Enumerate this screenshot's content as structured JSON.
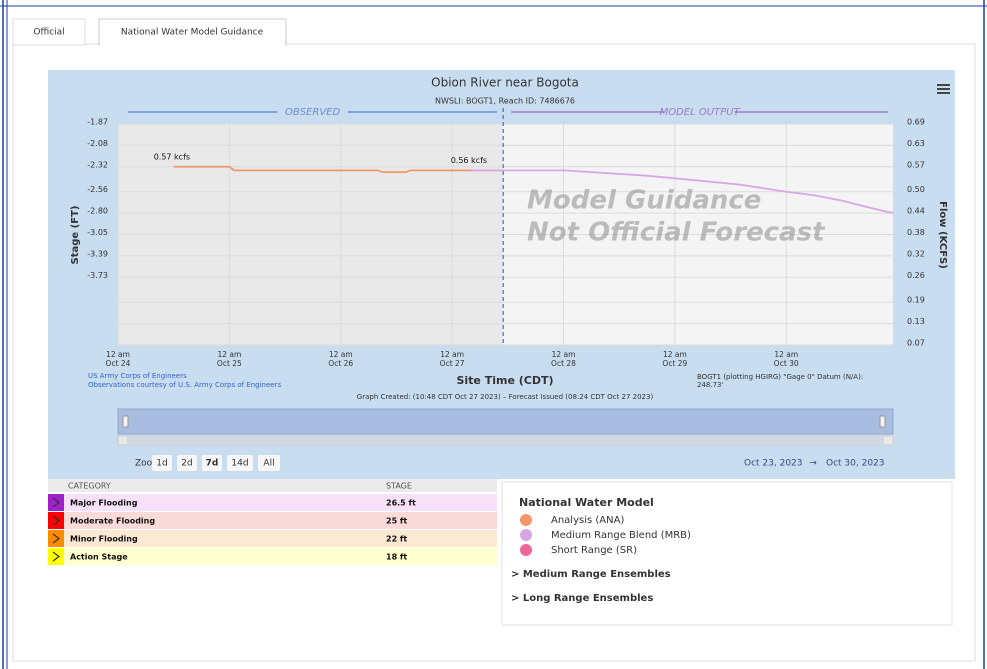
{
  "tabs": [
    "Official",
    "National Water Model Guidance"
  ],
  "chart": {
    "type": "line",
    "title": "Obion River near Bogota",
    "subtitle": "NWSLI: BOGT1, Reach ID: 7486676",
    "sections": [
      "OBSERVED",
      "MODEL OUTPUT"
    ],
    "watermark": [
      "Model Guidance",
      "Not Official Forecast"
    ],
    "ylabel": "Stage (FT)",
    "y2label": "Flow (KCFS)",
    "xlabel": "Site Time (CDT)",
    "yticks": [
      -1.87,
      -2.08,
      -2.32,
      -2.56,
      {
        "value": -2.8,
        "label": "-2.80"
      },
      -3.05,
      -3.39,
      -3.73
    ],
    "y2lim": [
      0.07,
      0.69
    ],
    "y2ticks": [
      0.69,
      0.63,
      0.57,
      {
        "value": 0.5,
        "label": "0.50"
      },
      0.44,
      0.38,
      0.32,
      0.26,
      0.19,
      0.13,
      0.07
    ],
    "xlim": [
      "10-24 00:00",
      "10-30 23:00"
    ],
    "xticks": [
      {
        "value": "10-24 00:00",
        "label": [
          "12 am",
          "Oct 24"
        ]
      },
      {
        "value": "10-25 00:00",
        "label": [
          "12 am",
          "Oct 25"
        ]
      },
      {
        "value": "10-26 00:00",
        "label": [
          "12 am",
          "Oct 26"
        ]
      },
      {
        "value": "10-27 00:00",
        "label": [
          "12 am",
          "Oct 27"
        ]
      },
      {
        "value": "10-28 00:00",
        "label": [
          "12 am",
          "Oct 28"
        ]
      },
      {
        "value": "10-29 00:00",
        "label": [
          "12 am",
          "Oct 29"
        ]
      },
      {
        "value": "10-30 00:00",
        "label": [
          "12 am",
          "Oct 30"
        ]
      }
    ],
    "grid": true,
    "series": [
      {
        "name": "Analysis (ANA)",
        "color": "#f4956b",
        "axis": "y2",
        "x": [
          "10-24 12:00",
          "10-25 00:00",
          "10-25 01:00",
          "10-26 08:00",
          "10-26 09:00",
          "10-26 14:00",
          "10-26 15:00",
          "10-27 11:00"
        ],
        "values": [
          0.57,
          0.57,
          0.56,
          0.56,
          0.555,
          0.555,
          0.56,
          0.56
        ]
      },
      {
        "name": "Medium Range Blend (MRB)",
        "color": "#d8a6e3",
        "axis": "y2",
        "x": [
          "10-27 04:00",
          "10-28 00:00",
          "10-28 06:00",
          "10-28 18:00",
          "10-29 06:00",
          "10-29 14:00",
          "10-30 00:00",
          "10-30 06:00",
          "10-30 12:00",
          "10-30 18:00",
          "10-30 23:00"
        ],
        "values": [
          0.56,
          0.56,
          0.555,
          0.545,
          0.53,
          0.52,
          0.5,
          0.49,
          0.475,
          0.455,
          0.44
        ]
      },
      {
        "name": "Short Range (SR)",
        "color": "#f0659b",
        "axis": "y2",
        "x": [],
        "values": []
      }
    ],
    "annotations": [
      "0.57 kcfs",
      "0.56 kcfs"
    ],
    "credits": [
      "US Army Corps of Engineers",
      "Observations courtesy of U.S. Army Corps of Engineers"
    ],
    "datum": [
      "BOGT1 (plotting HGIRG) \"Gage 0\" Datum (N/A):",
      "248.73'"
    ],
    "created": "Graph Created: (10:48 CDT Oct 27 2023) – Forecast Issued (08:24 CDT Oct 27 2023)",
    "zoom_label": "Zoom",
    "zoom_buttons": [
      "1d",
      "2d",
      "7d",
      "14d",
      "All"
    ],
    "range": [
      "Oct 23, 2023",
      "→",
      "Oct 30, 2023"
    ]
  },
  "table": {
    "header": [
      "CATEGORY",
      "STAGE"
    ],
    "rows": [
      {
        "category": "Major Flooding",
        "stage": "26.5 ft",
        "color": "#a020c8",
        "bg": "#f7e1f9"
      },
      {
        "category": "Moderate Flooding",
        "stage": "25 ft",
        "color": "#ff0000",
        "bg": "#fbdada"
      },
      {
        "category": "Minor Flooding",
        "stage": "22 ft",
        "color": "#ff8c00",
        "bg": "#fde9d3"
      },
      {
        "category": "Action Stage",
        "stage": "18 ft",
        "color": "#ffff00",
        "bg": "#ffffd0"
      }
    ]
  },
  "legend": {
    "title": "National Water Model",
    "links": [
      "> Medium Range Ensembles",
      "> Long Range Ensembles"
    ]
  }
}
